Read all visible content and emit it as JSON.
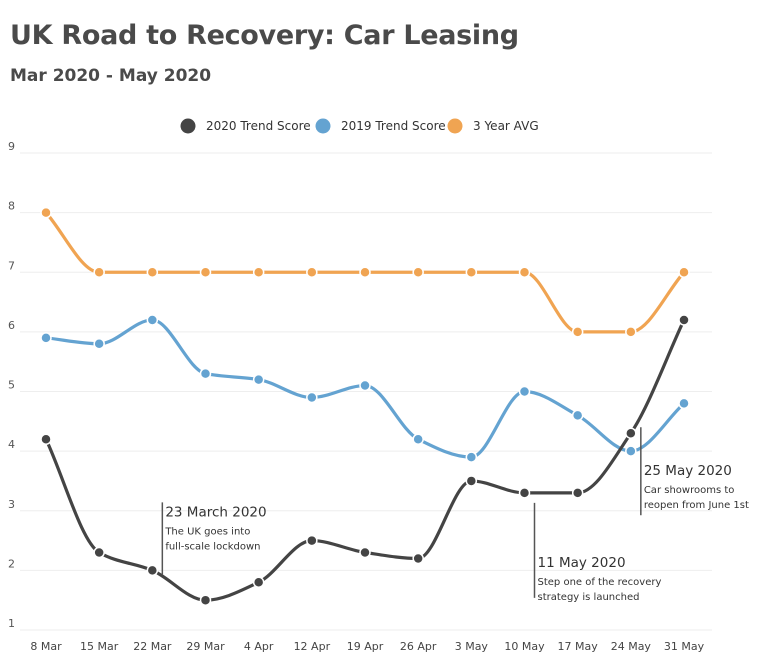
{
  "title": "UK Road to Recovery: Car Leasing",
  "subtitle": "Mar 2020 - May 2020",
  "chart_data": {
    "type": "line",
    "categories": [
      "8 Mar",
      "15 Mar",
      "22 Mar",
      "29 Mar",
      "4 Apr",
      "12 Apr",
      "19 Apr",
      "26 Apr",
      "3 May",
      "10 May",
      "17 May",
      "24 May",
      "31 May"
    ],
    "ylim": [
      1,
      9
    ],
    "yticks": [
      1,
      2,
      3,
      4,
      5,
      6,
      7,
      8,
      9
    ],
    "grid": true,
    "legend_position": "top-center",
    "series": [
      {
        "name": "2020 Trend Score",
        "color": "#444444",
        "values": [
          4.2,
          2.3,
          2.0,
          1.5,
          1.8,
          2.5,
          2.3,
          2.2,
          3.5,
          3.3,
          3.3,
          4.3,
          6.2
        ]
      },
      {
        "name": "2019 Trend Score",
        "color": "#64a3d1",
        "values": [
          5.9,
          5.8,
          6.2,
          5.3,
          5.2,
          4.9,
          5.1,
          4.2,
          3.9,
          5.0,
          4.6,
          4.0,
          4.8
        ]
      },
      {
        "name": "3 Year AVG",
        "color": "#f0a452",
        "values": [
          8.0,
          7.0,
          7.0,
          7.0,
          7.0,
          7.0,
          7.0,
          7.0,
          7.0,
          7.0,
          6.0,
          6.0,
          7.0
        ]
      }
    ],
    "annotations": [
      {
        "x": "22 Mar",
        "y": 2.0,
        "title": "23 March 2020",
        "lines": [
          "The UK goes into",
          "full-scale lockdown"
        ],
        "direction": "up"
      },
      {
        "x": "10 May",
        "y": 3.3,
        "title": "11 May 2020",
        "lines": [
          "Step one of the recovery",
          "strategy is launched"
        ],
        "direction": "down"
      },
      {
        "x": "24 May",
        "y": 4.3,
        "title": "25 May 2020",
        "lines": [
          "Car showrooms to",
          "reopen from June 1st"
        ],
        "direction": "down"
      }
    ]
  }
}
